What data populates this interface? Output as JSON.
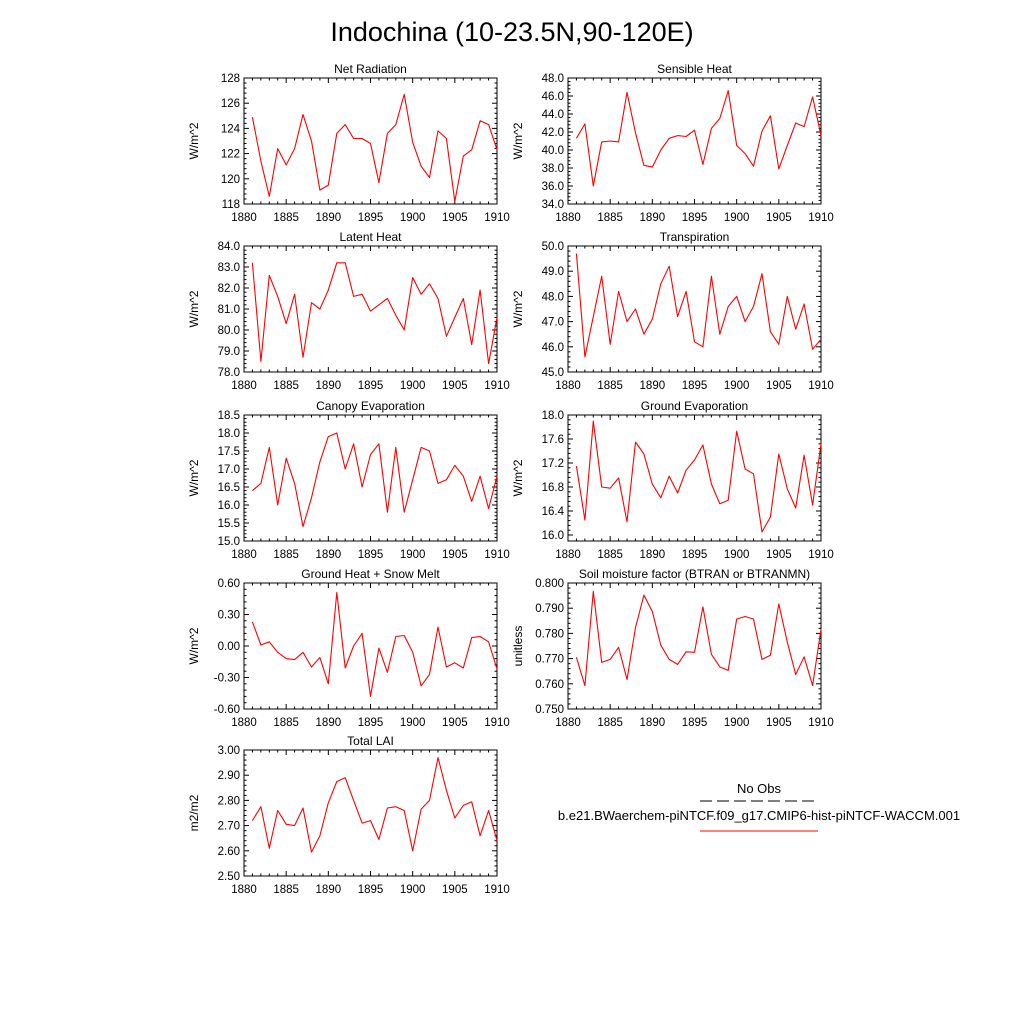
{
  "title": "Indochina (10-23.5N,90-120E)",
  "legend": {
    "obs_label": "No Obs",
    "obs_color": "#000000",
    "model_label": "b.e21.BWaerchem-piNTCF.f09_g17.CMIP6-hist-piNTCF-WACCM.001",
    "model_color": "#ff0000"
  },
  "colors": {
    "line": "#ff0000",
    "axis": "#000000",
    "background": "#ffffff"
  },
  "chart_data": [
    {
      "type": "line",
      "title": "Net Radiation",
      "ylabel": "W/m^2",
      "xlim": [
        1880,
        1910
      ],
      "xticks": [
        1880,
        1885,
        1890,
        1895,
        1900,
        1905,
        1910
      ],
      "ylim": [
        118,
        128
      ],
      "yticks": [
        "118",
        "120",
        "122",
        "124",
        "126",
        "128"
      ],
      "x": [
        1881,
        1882,
        1883,
        1884,
        1885,
        1886,
        1887,
        1888,
        1889,
        1890,
        1891,
        1892,
        1893,
        1894,
        1895,
        1896,
        1897,
        1898,
        1899,
        1900,
        1901,
        1902,
        1903,
        1904,
        1905,
        1906,
        1907,
        1908,
        1909,
        1910
      ],
      "series": [
        {
          "values": [
            124.9,
            121.4,
            118.6,
            122.4,
            121.1,
            122.4,
            125.1,
            123.0,
            119.1,
            119.5,
            123.6,
            124.3,
            123.2,
            123.2,
            122.8,
            119.7,
            123.6,
            124.3,
            126.7,
            122.9,
            121.0,
            120.1,
            123.8,
            123.2,
            118.2,
            121.8,
            122.3,
            124.6,
            124.3,
            122.3
          ]
        }
      ]
    },
    {
      "type": "line",
      "title": "Sensible Heat",
      "ylabel": "W/m^2",
      "xlim": [
        1880,
        1910
      ],
      "xticks": [
        1880,
        1885,
        1890,
        1895,
        1900,
        1905,
        1910
      ],
      "ylim": [
        34,
        48
      ],
      "yticks": [
        "34.0",
        "36.0",
        "38.0",
        "40.0",
        "42.0",
        "44.0",
        "46.0",
        "48.0"
      ],
      "x": [
        1881,
        1882,
        1883,
        1884,
        1885,
        1886,
        1887,
        1888,
        1889,
        1890,
        1891,
        1892,
        1893,
        1894,
        1895,
        1896,
        1897,
        1898,
        1899,
        1900,
        1901,
        1902,
        1903,
        1904,
        1905,
        1906,
        1907,
        1908,
        1909,
        1910
      ],
      "series": [
        {
          "values": [
            41.3,
            42.9,
            36.0,
            40.9,
            41.0,
            40.9,
            46.4,
            41.9,
            38.3,
            38.1,
            40.0,
            41.3,
            41.6,
            41.5,
            42.2,
            38.4,
            42.4,
            43.5,
            46.6,
            40.5,
            39.6,
            38.2,
            42.1,
            43.8,
            37.9,
            40.5,
            43.0,
            42.6,
            45.9,
            41.6
          ]
        }
      ]
    },
    {
      "type": "line",
      "title": "Latent Heat",
      "ylabel": "W/m^2",
      "xlim": [
        1880,
        1910
      ],
      "xticks": [
        1880,
        1885,
        1890,
        1895,
        1900,
        1905,
        1910
      ],
      "ylim": [
        78,
        84
      ],
      "yticks": [
        "78.0",
        "79.0",
        "80.0",
        "81.0",
        "82.0",
        "83.0",
        "84.0"
      ],
      "x": [
        1881,
        1882,
        1883,
        1884,
        1885,
        1886,
        1887,
        1888,
        1889,
        1890,
        1891,
        1892,
        1893,
        1894,
        1895,
        1896,
        1897,
        1898,
        1899,
        1900,
        1901,
        1902,
        1903,
        1904,
        1905,
        1906,
        1907,
        1908,
        1909,
        1910
      ],
      "series": [
        {
          "values": [
            83.2,
            78.5,
            82.6,
            81.6,
            80.3,
            81.7,
            78.7,
            81.3,
            81.0,
            81.9,
            83.2,
            83.2,
            81.6,
            81.7,
            80.9,
            81.2,
            81.5,
            80.7,
            80.0,
            82.5,
            81.7,
            82.2,
            81.5,
            79.7,
            80.6,
            81.5,
            79.3,
            81.9,
            78.4,
            80.6
          ]
        }
      ]
    },
    {
      "type": "line",
      "title": "Transpiration",
      "ylabel": "W/m^2",
      "xlim": [
        1880,
        1910
      ],
      "xticks": [
        1880,
        1885,
        1890,
        1895,
        1900,
        1905,
        1910
      ],
      "ylim": [
        45,
        50
      ],
      "yticks": [
        "45.0",
        "46.0",
        "47.0",
        "48.0",
        "49.0",
        "50.0"
      ],
      "x": [
        1881,
        1882,
        1883,
        1884,
        1885,
        1886,
        1887,
        1888,
        1889,
        1890,
        1891,
        1892,
        1893,
        1894,
        1895,
        1896,
        1897,
        1898,
        1899,
        1900,
        1901,
        1902,
        1903,
        1904,
        1905,
        1906,
        1907,
        1908,
        1909,
        1910
      ],
      "series": [
        {
          "values": [
            49.7,
            45.6,
            47.2,
            48.8,
            46.1,
            48.2,
            47.0,
            47.5,
            46.5,
            47.1,
            48.5,
            49.2,
            47.2,
            48.2,
            46.2,
            46.0,
            48.8,
            46.5,
            47.6,
            48.0,
            47.0,
            47.6,
            48.9,
            46.6,
            46.1,
            48.0,
            46.7,
            47.7,
            45.9,
            46.3
          ]
        }
      ]
    },
    {
      "type": "line",
      "title": "Canopy Evaporation",
      "ylabel": "W/m^2",
      "xlim": [
        1880,
        1910
      ],
      "xticks": [
        1880,
        1885,
        1890,
        1895,
        1900,
        1905,
        1910
      ],
      "ylim": [
        15,
        18.5
      ],
      "yticks": [
        "15.0",
        "15.5",
        "16.0",
        "16.5",
        "17.0",
        "17.5",
        "18.0",
        "18.5"
      ],
      "x": [
        1881,
        1882,
        1883,
        1884,
        1885,
        1886,
        1887,
        1888,
        1889,
        1890,
        1891,
        1892,
        1893,
        1894,
        1895,
        1896,
        1897,
        1898,
        1899,
        1900,
        1901,
        1902,
        1903,
        1904,
        1905,
        1906,
        1907,
        1908,
        1909,
        1910
      ],
      "series": [
        {
          "values": [
            16.4,
            16.6,
            17.6,
            16.0,
            17.3,
            16.6,
            15.4,
            16.2,
            17.2,
            17.9,
            18.0,
            17.0,
            17.7,
            16.5,
            17.4,
            17.7,
            15.8,
            17.6,
            15.8,
            16.7,
            17.6,
            17.5,
            16.6,
            16.7,
            17.1,
            16.8,
            16.1,
            16.8,
            15.9,
            16.8
          ]
        }
      ]
    },
    {
      "type": "line",
      "title": "Ground Evaporation",
      "ylabel": "W/m^2",
      "xlim": [
        1880,
        1910
      ],
      "xticks": [
        1880,
        1885,
        1890,
        1895,
        1900,
        1905,
        1910
      ],
      "ylim": [
        15.9,
        18.0
      ],
      "yticks": [
        "16.0",
        "16.4",
        "16.8",
        "17.2",
        "17.6",
        "18.0"
      ],
      "ytick_values": [
        16.0,
        16.4,
        16.8,
        17.2,
        17.6,
        18.0
      ],
      "x": [
        1881,
        1882,
        1883,
        1884,
        1885,
        1886,
        1887,
        1888,
        1889,
        1890,
        1891,
        1892,
        1893,
        1894,
        1895,
        1896,
        1897,
        1898,
        1899,
        1900,
        1901,
        1902,
        1903,
        1904,
        1905,
        1906,
        1907,
        1908,
        1909,
        1910
      ],
      "series": [
        {
          "values": [
            17.15,
            16.25,
            17.9,
            16.8,
            16.78,
            16.95,
            16.22,
            17.55,
            17.35,
            16.85,
            16.62,
            16.98,
            16.7,
            17.08,
            17.25,
            17.5,
            16.85,
            16.52,
            16.58,
            17.73,
            17.1,
            17.02,
            16.05,
            16.3,
            17.35,
            16.77,
            16.45,
            17.33,
            16.5,
            17.52
          ]
        }
      ]
    },
    {
      "type": "line",
      "title": "Ground Heat + Snow Melt",
      "ylabel": "W/m^2",
      "xlim": [
        1880,
        1910
      ],
      "xticks": [
        1880,
        1885,
        1890,
        1895,
        1900,
        1905,
        1910
      ],
      "ylim": [
        -0.6,
        0.6
      ],
      "yticks": [
        "-0.60",
        "-0.30",
        "0.00",
        "0.30",
        "0.60"
      ],
      "x": [
        1881,
        1882,
        1883,
        1884,
        1885,
        1886,
        1887,
        1888,
        1889,
        1890,
        1891,
        1892,
        1893,
        1894,
        1895,
        1896,
        1897,
        1898,
        1899,
        1900,
        1901,
        1902,
        1903,
        1904,
        1905,
        1906,
        1907,
        1908,
        1909,
        1910
      ],
      "series": [
        {
          "values": [
            0.23,
            0.01,
            0.04,
            -0.06,
            -0.12,
            -0.13,
            -0.06,
            -0.2,
            -0.11,
            -0.36,
            0.51,
            -0.21,
            0.0,
            0.12,
            -0.48,
            -0.02,
            -0.25,
            0.09,
            0.1,
            -0.06,
            -0.38,
            -0.27,
            0.18,
            -0.2,
            -0.16,
            -0.21,
            0.08,
            0.09,
            0.04,
            -0.22
          ]
        }
      ]
    },
    {
      "type": "line",
      "title": "Soil moisture factor (BTRAN or BTRANMN)",
      "ylabel": "unitless",
      "xlim": [
        1880,
        1910
      ],
      "xticks": [
        1880,
        1885,
        1890,
        1895,
        1900,
        1905,
        1910
      ],
      "ylim": [
        0.75,
        0.8
      ],
      "yticks": [
        "0.750",
        "0.760",
        "0.770",
        "0.780",
        "0.790",
        "0.800"
      ],
      "x": [
        1881,
        1882,
        1883,
        1884,
        1885,
        1886,
        1887,
        1888,
        1889,
        1890,
        1891,
        1892,
        1893,
        1894,
        1895,
        1896,
        1897,
        1898,
        1899,
        1900,
        1901,
        1902,
        1903,
        1904,
        1905,
        1906,
        1907,
        1908,
        1909,
        1910
      ],
      "series": [
        {
          "values": [
            0.7705,
            0.7593,
            0.7967,
            0.7685,
            0.7697,
            0.7745,
            0.7617,
            0.7823,
            0.7952,
            0.7887,
            0.7753,
            0.7697,
            0.7677,
            0.7727,
            0.7725,
            0.7905,
            0.7717,
            0.7667,
            0.7653,
            0.7857,
            0.7867,
            0.7857,
            0.7697,
            0.7713,
            0.7917,
            0.7765,
            0.7637,
            0.7707,
            0.7593,
            0.7817
          ]
        }
      ]
    },
    {
      "type": "line",
      "title": "Total LAI",
      "ylabel": "m2/m2",
      "xlim": [
        1880,
        1910
      ],
      "xticks": [
        1880,
        1885,
        1890,
        1895,
        1900,
        1905,
        1910
      ],
      "ylim": [
        2.5,
        3.0
      ],
      "yticks": [
        "2.50",
        "2.60",
        "2.70",
        "2.80",
        "2.90",
        "3.00"
      ],
      "x": [
        1881,
        1882,
        1883,
        1884,
        1885,
        1886,
        1887,
        1888,
        1889,
        1890,
        1891,
        1892,
        1893,
        1894,
        1895,
        1896,
        1897,
        1898,
        1899,
        1900,
        1901,
        1902,
        1903,
        1904,
        1905,
        1906,
        1907,
        1908,
        1909,
        1910
      ],
      "series": [
        {
          "values": [
            2.72,
            2.775,
            2.61,
            2.76,
            2.705,
            2.7,
            2.77,
            2.595,
            2.66,
            2.79,
            2.875,
            2.89,
            2.8,
            2.71,
            2.72,
            2.645,
            2.77,
            2.775,
            2.76,
            2.6,
            2.765,
            2.8,
            2.97,
            2.84,
            2.73,
            2.78,
            2.795,
            2.66,
            2.76,
            2.64
          ]
        }
      ]
    }
  ]
}
